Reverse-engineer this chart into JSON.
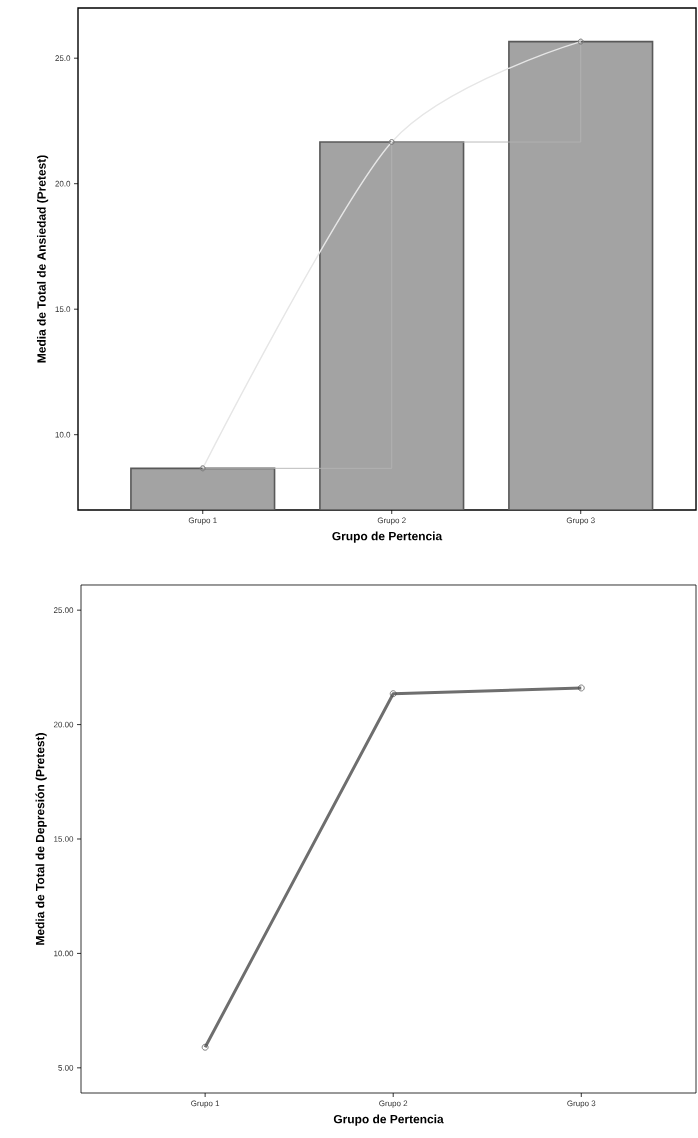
{
  "chart_data": [
    {
      "type": "bar",
      "xlabel": "Grupo de Pertencia",
      "ylabel": "Media de Total de Ansiedad (Pretest)",
      "categories": [
        "Grupo 1",
        "Grupo 2",
        "Grupo 3"
      ],
      "ylim": [
        7.0,
        27.0
      ],
      "yticks": [
        {
          "value": 10,
          "label": "10.0"
        },
        {
          "value": 15,
          "label": "15.0"
        },
        {
          "value": 20,
          "label": "20.0"
        },
        {
          "value": 25,
          "label": "25.0"
        }
      ],
      "grid": false,
      "series": [
        {
          "type": "bar",
          "color": "#a3a3a3",
          "values": [
            8.66,
            21.66,
            25.66
          ]
        },
        {
          "type": "step",
          "color": "#b4b4b4",
          "marker": "circle",
          "values": [
            8.66,
            21.66,
            25.66
          ]
        },
        {
          "type": "line",
          "color": "#e6e6e6",
          "marker": "circle",
          "values": [
            8.66,
            21.66,
            25.66
          ]
        }
      ]
    },
    {
      "type": "line",
      "xlabel": "Grupo de Pertencia",
      "ylabel": "Media de Total de Depresión (Pretest)",
      "categories": [
        "Grupo 1",
        "Grupo 2",
        "Grupo 3"
      ],
      "ylim": [
        3.9,
        26.1
      ],
      "yticks": [
        {
          "value": 5,
          "label": "5.00"
        },
        {
          "value": 10,
          "label": "10.00"
        },
        {
          "value": 15,
          "label": "15.00"
        },
        {
          "value": 20,
          "label": "20.00"
        },
        {
          "value": 25,
          "label": "25.00"
        }
      ],
      "marker": "circle",
      "grid": false,
      "series": [
        {
          "color": "#6e6e6e",
          "values": [
            5.9,
            21.35,
            21.6
          ]
        }
      ]
    }
  ]
}
